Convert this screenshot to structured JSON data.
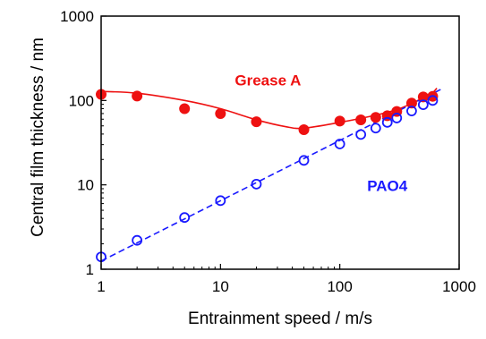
{
  "chart_data": {
    "type": "scatter",
    "xscale": "log",
    "yscale": "log",
    "xlim": [
      1,
      1000
    ],
    "ylim": [
      1,
      1000
    ],
    "xticks": [
      "1",
      "10",
      "100",
      "1000"
    ],
    "yticks": [
      "1",
      "10",
      "100",
      "1000"
    ],
    "xlabel": "Entrainment speed / m/s",
    "ylabel": "Central film thickness / nm",
    "grid": false,
    "series": [
      {
        "name": "Grease A",
        "color": "#ee1111",
        "marker": "filled-circle",
        "fit": "solid-curve",
        "x": [
          1,
          2,
          5,
          10,
          20,
          50,
          100,
          150,
          200,
          250,
          300,
          400,
          500,
          600
        ],
        "y": [
          118,
          113,
          80,
          70,
          56,
          45,
          57,
          59,
          63,
          66,
          74,
          93,
          110,
          112
        ],
        "fit_x": [
          1,
          2,
          5,
          10,
          20,
          35,
          50,
          100,
          200,
          300,
          400,
          500,
          600,
          650
        ],
        "fit_y": [
          128,
          122,
          100,
          80,
          59,
          49,
          47,
          55,
          67,
          78,
          92,
          108,
          124,
          140
        ]
      },
      {
        "name": "PAO4",
        "color": "#1a1aff",
        "marker": "open-circle",
        "fit": "dashed-line",
        "x": [
          1,
          2,
          5,
          10,
          20,
          50,
          100,
          150,
          200,
          250,
          300,
          400,
          500,
          600
        ],
        "y": [
          1.4,
          2.2,
          4.1,
          6.5,
          10.2,
          19.5,
          30.5,
          39.5,
          47,
          55,
          62,
          75,
          89,
          100
        ],
        "fit_x": [
          1,
          700
        ],
        "fit_y": [
          1.25,
          135
        ]
      }
    ],
    "annotations": [
      {
        "text": "Grease A",
        "color": "#ee1111",
        "x": 25,
        "y": 150
      },
      {
        "text": "PAO4",
        "color": "#1a1aff",
        "x": 250,
        "y": 8.5
      }
    ]
  }
}
